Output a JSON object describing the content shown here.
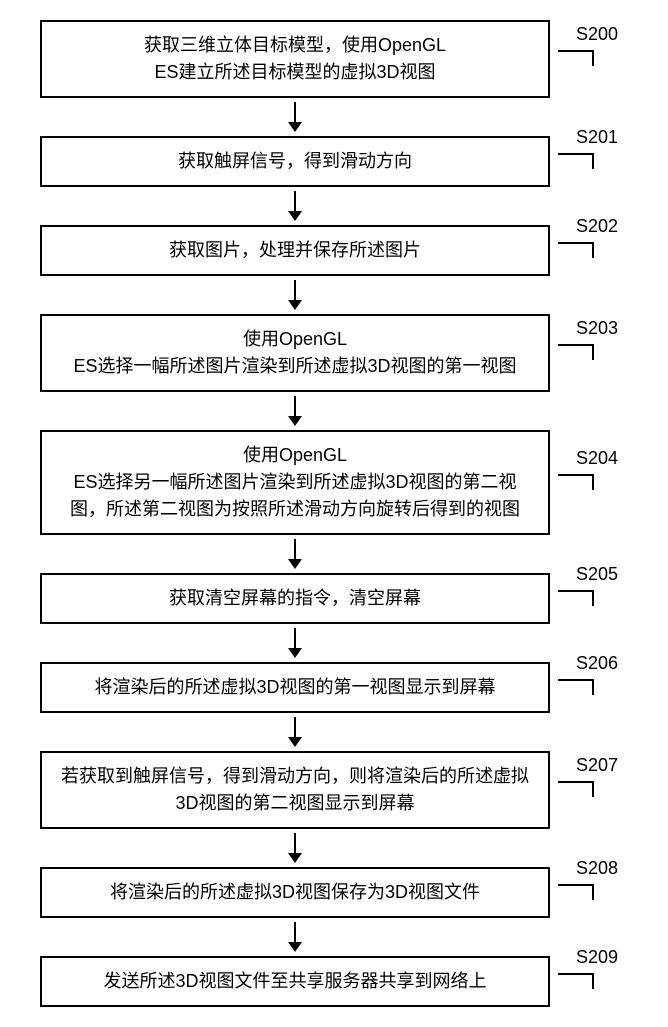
{
  "flowchart": {
    "type": "flowchart",
    "background_color": "#ffffff",
    "border_color": "#000000",
    "text_color": "#000000",
    "font_size": 18,
    "box_border_width": 2,
    "steps": [
      {
        "id": "S200",
        "text": "获取三维立体目标模型，使用OpenGL\nES建立所述目标模型的虚拟3D视图"
      },
      {
        "id": "S201",
        "text": "获取触屏信号，得到滑动方向"
      },
      {
        "id": "S202",
        "text": "获取图片，处理并保存所述图片"
      },
      {
        "id": "S203",
        "text": "使用OpenGL\nES选择一幅所述图片渲染到所述虚拟3D视图的第一视图"
      },
      {
        "id": "S204",
        "text": "使用OpenGL\nES选择另一幅所述图片渲染到所述虚拟3D视图的第二视图，所述第二视图为按照所述滑动方向旋转后得到的视图"
      },
      {
        "id": "S205",
        "text": "获取清空屏幕的指令，清空屏幕"
      },
      {
        "id": "S206",
        "text": "将渲染后的所述虚拟3D视图的第一视图显示到屏幕"
      },
      {
        "id": "S207",
        "text": "若获取到触屏信号，得到滑动方向，则将渲染后的所述虚拟3D视图的第二视图显示到屏幕"
      },
      {
        "id": "S208",
        "text": "将渲染后的所述虚拟3D视图保存为3D视图文件"
      },
      {
        "id": "S209",
        "text": "发送所述3D视图文件至共享服务器共享到网络上"
      }
    ]
  }
}
